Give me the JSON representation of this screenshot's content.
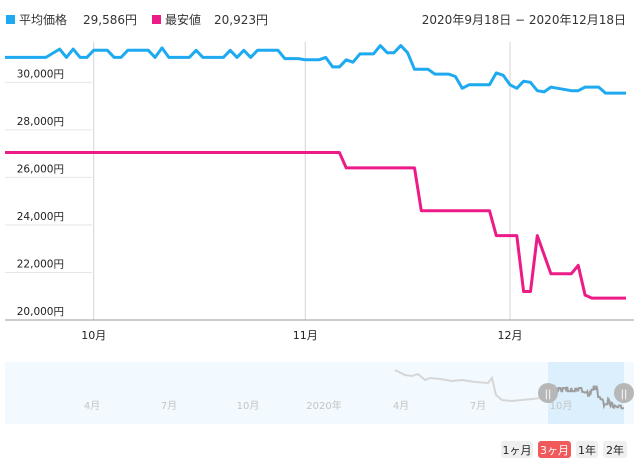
{
  "legend": {
    "avg_label": "平均価格",
    "avg_value": "29,586円",
    "min_label": "最安値",
    "min_value": "20,923円",
    "avg_color": "#1eaaf1",
    "min_color": "#ec1b87"
  },
  "date_range": "2020年9月18日 − 2020年12月18日",
  "range_buttons": [
    {
      "label": "1ヶ月",
      "active": false
    },
    {
      "label": "3ヶ月",
      "active": true
    },
    {
      "label": "1年",
      "active": false
    },
    {
      "label": "2年",
      "active": false
    }
  ],
  "navigator": {
    "labels": [
      "4月",
      "7月",
      "10月",
      "2020年",
      "4月",
      "7月",
      "10月"
    ],
    "handle_glyph": "||"
  },
  "chart_data": {
    "type": "line",
    "x_start": "2020-09-18",
    "x_end": "2020-12-18",
    "x_tick_labels": [
      "10月",
      "11月",
      "12月"
    ],
    "y_tick_labels": [
      "20,000円",
      "22,000円",
      "24,000円",
      "26,000円",
      "28,000円",
      "30,000円"
    ],
    "ylim": [
      20000,
      31700
    ],
    "grid": true,
    "series": [
      {
        "name": "平均価格",
        "color": "#1eaaf1",
        "points": [
          [
            "2020-09-18",
            31050
          ],
          [
            "2020-09-24",
            31050
          ],
          [
            "2020-09-26",
            31400
          ],
          [
            "2020-09-27",
            31050
          ],
          [
            "2020-09-28",
            31400
          ],
          [
            "2020-09-29",
            31050
          ],
          [
            "2020-09-30",
            31050
          ],
          [
            "2020-10-01",
            31350
          ],
          [
            "2020-10-03",
            31350
          ],
          [
            "2020-10-04",
            31050
          ],
          [
            "2020-10-05",
            31050
          ],
          [
            "2020-10-06",
            31350
          ],
          [
            "2020-10-09",
            31350
          ],
          [
            "2020-10-10",
            31050
          ],
          [
            "2020-10-11",
            31450
          ],
          [
            "2020-10-12",
            31050
          ],
          [
            "2020-10-15",
            31050
          ],
          [
            "2020-10-16",
            31350
          ],
          [
            "2020-10-17",
            31050
          ],
          [
            "2020-10-20",
            31050
          ],
          [
            "2020-10-21",
            31350
          ],
          [
            "2020-10-22",
            31050
          ],
          [
            "2020-10-23",
            31350
          ],
          [
            "2020-10-24",
            31050
          ],
          [
            "2020-10-25",
            31350
          ],
          [
            "2020-10-28",
            31350
          ],
          [
            "2020-10-29",
            31000
          ],
          [
            "2020-10-31",
            31000
          ],
          [
            "2020-11-01",
            30950
          ],
          [
            "2020-11-03",
            30950
          ],
          [
            "2020-11-04",
            31050
          ],
          [
            "2020-11-05",
            30650
          ],
          [
            "2020-11-06",
            30650
          ],
          [
            "2020-11-07",
            30950
          ],
          [
            "2020-11-08",
            30850
          ],
          [
            "2020-11-09",
            31200
          ],
          [
            "2020-11-11",
            31200
          ],
          [
            "2020-11-12",
            31550
          ],
          [
            "2020-11-13",
            31250
          ],
          [
            "2020-11-14",
            31250
          ],
          [
            "2020-11-15",
            31550
          ],
          [
            "2020-11-16",
            31250
          ],
          [
            "2020-11-17",
            30550
          ],
          [
            "2020-11-19",
            30550
          ],
          [
            "2020-11-20",
            30350
          ],
          [
            "2020-11-22",
            30350
          ],
          [
            "2020-11-23",
            30250
          ],
          [
            "2020-11-24",
            29750
          ],
          [
            "2020-11-25",
            29900
          ],
          [
            "2020-11-28",
            29900
          ],
          [
            "2020-11-29",
            30400
          ],
          [
            "2020-11-30",
            30300
          ],
          [
            "2020-12-01",
            29900
          ],
          [
            "2020-12-02",
            29750
          ],
          [
            "2020-12-03",
            30050
          ],
          [
            "2020-12-04",
            30000
          ],
          [
            "2020-12-05",
            29650
          ],
          [
            "2020-12-06",
            29600
          ],
          [
            "2020-12-07",
            29800
          ],
          [
            "2020-12-08",
            29750
          ],
          [
            "2020-12-10",
            29650
          ],
          [
            "2020-12-11",
            29650
          ],
          [
            "2020-12-12",
            29800
          ],
          [
            "2020-12-14",
            29800
          ],
          [
            "2020-12-15",
            29550
          ],
          [
            "2020-12-18",
            29550
          ]
        ]
      },
      {
        "name": "最安値",
        "color": "#ec1b87",
        "points": [
          [
            "2020-09-18",
            27050
          ],
          [
            "2020-11-06",
            27050
          ],
          [
            "2020-11-07",
            26400
          ],
          [
            "2020-11-17",
            26400
          ],
          [
            "2020-11-18",
            24600
          ],
          [
            "2020-11-28",
            24600
          ],
          [
            "2020-11-29",
            23550
          ],
          [
            "2020-12-02",
            23550
          ],
          [
            "2020-12-03",
            21200
          ],
          [
            "2020-12-04",
            21200
          ],
          [
            "2020-12-05",
            23550
          ],
          [
            "2020-12-07",
            21950
          ],
          [
            "2020-12-10",
            21950
          ],
          [
            "2020-12-11",
            22300
          ],
          [
            "2020-12-12",
            21050
          ],
          [
            "2020-12-13",
            20920
          ],
          [
            "2020-12-18",
            20920
          ]
        ]
      }
    ]
  }
}
